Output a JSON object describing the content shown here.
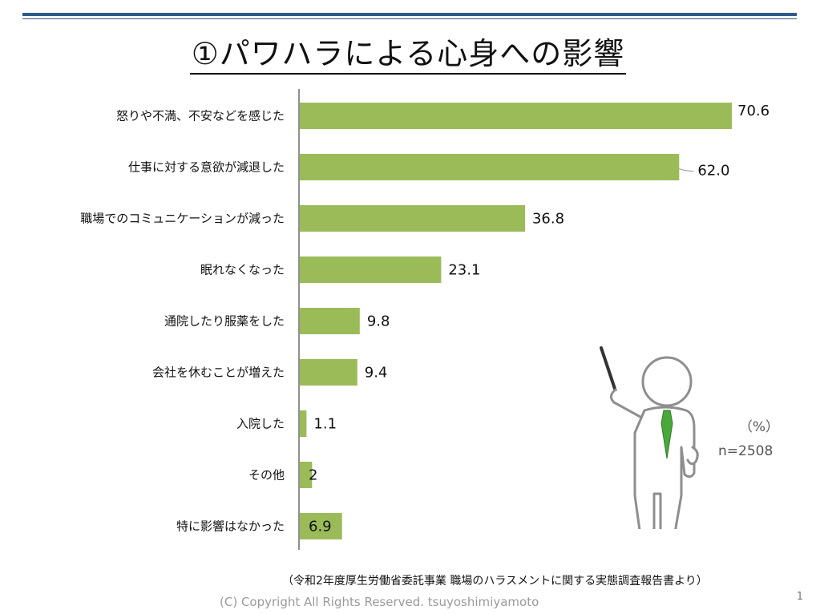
{
  "title": "①パワハラによる心身への影響",
  "unit": "（%）",
  "n_label": "n=2508",
  "source": "（令和2年度厚生労働省委託事業 職場のハラスメントに関する実態調査報告書より）",
  "copyright": "(C) Copyright All Rights Reserved. tsuyoshimiyamoto",
  "page_number": "1",
  "colors": {
    "bar": "#9bbb59",
    "rule": "#2e5a88",
    "tie": "#4aa83a"
  },
  "chart_data": {
    "type": "bar",
    "orientation": "horizontal",
    "title": "①パワハラによる心身への影響",
    "xlabel": "",
    "ylabel": "",
    "xlim": [
      0,
      75
    ],
    "grid": false,
    "legend": "none",
    "categories": [
      "怒りや不満、不安などを感じた",
      "仕事に対する意欲が減退した",
      "職場でのコミュニケーションが減った",
      "眠れなくなった",
      "通院したり服薬をした",
      "会社を休むことが増えた",
      "入院した",
      "その他",
      "特に影響はなかった"
    ],
    "values": [
      70.6,
      62.0,
      36.8,
      23.1,
      9.8,
      9.4,
      1.1,
      2,
      6.9
    ],
    "value_labels": [
      "70.6",
      "62.0",
      "36.8",
      "23.1",
      "9.8",
      "9.4",
      "1.1",
      "2",
      "6.9"
    ]
  }
}
